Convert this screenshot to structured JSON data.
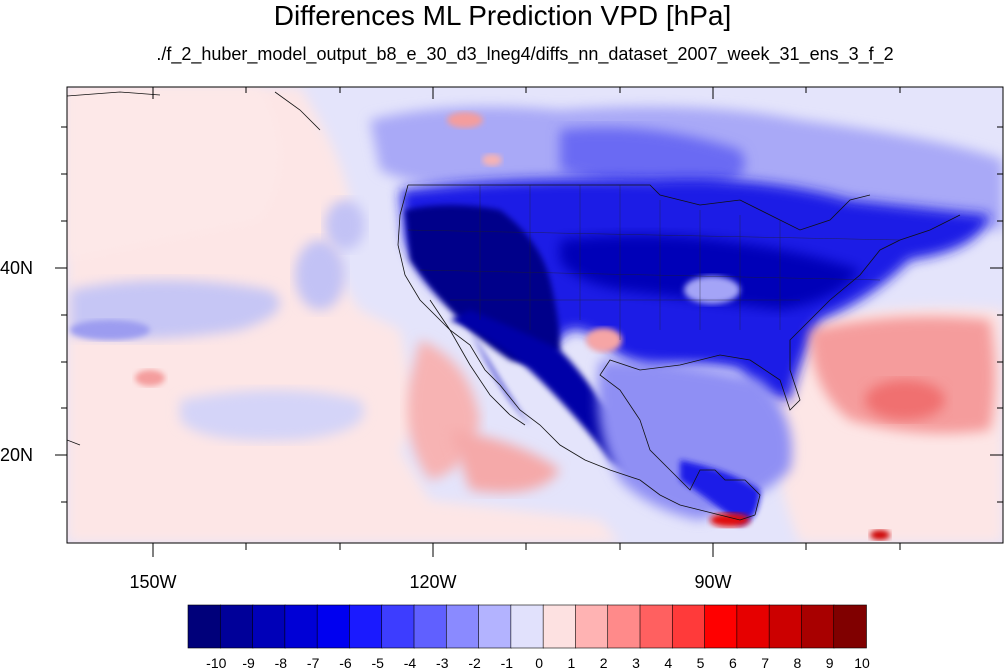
{
  "title": "Differences ML Prediction VPD [hPa]",
  "subtitle": "./f_2_huber_model_output_b8_e_30_d3_lneg4/diffs_nn_dataset_2007_week_31_ens_3_f_2",
  "lat_labels": [
    "40N",
    "20N"
  ],
  "lon_labels": [
    "150W",
    "120W",
    "90W"
  ],
  "colorbar": {
    "labels": [
      "-10",
      "-9",
      "-8",
      "-7",
      "-6",
      "-5",
      "-4",
      "-3",
      "-2",
      "-1",
      "0",
      "1",
      "2",
      "3",
      "4",
      "5",
      "6",
      "7",
      "8",
      "9",
      "10"
    ],
    "colors": [
      "#00007a",
      "#000099",
      "#0000b8",
      "#0000d6",
      "#0000f0",
      "#1a1aff",
      "#3d3dff",
      "#6060ff",
      "#8a8aff",
      "#b3b3ff",
      "#e1e1fc",
      "#fde1e1",
      "#ffb3b3",
      "#ff8a8a",
      "#ff6060",
      "#ff3a3a",
      "#ff0000",
      "#e60000",
      "#cc0000",
      "#a80000",
      "#800000"
    ]
  }
}
